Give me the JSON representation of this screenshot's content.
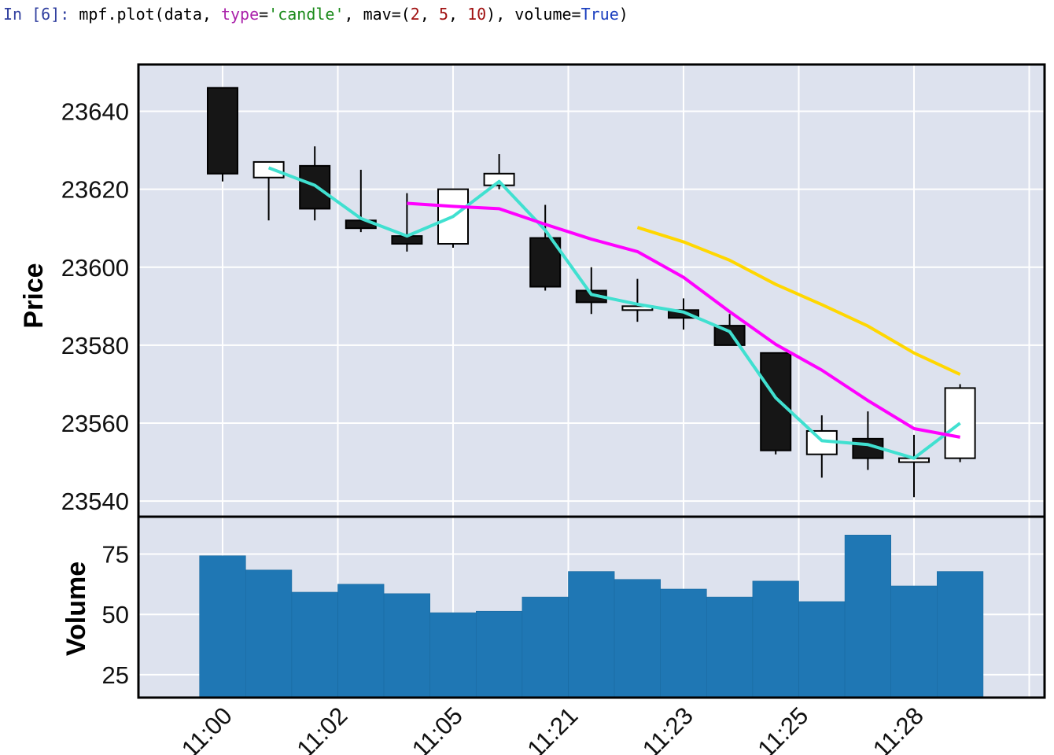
{
  "cell": {
    "prompt": "In [6]:",
    "code_parts": [
      {
        "t": " mpf.plot(data, ",
        "c": ""
      },
      {
        "t": "type",
        "c": "kw"
      },
      {
        "t": "=",
        "c": ""
      },
      {
        "t": "'candle'",
        "c": "str"
      },
      {
        "t": ", mav=(",
        "c": ""
      },
      {
        "t": "2",
        "c": "num"
      },
      {
        "t": ", ",
        "c": ""
      },
      {
        "t": "5",
        "c": "num"
      },
      {
        "t": ", ",
        "c": ""
      },
      {
        "t": "10",
        "c": "num"
      },
      {
        "t": "), volume=",
        "c": ""
      },
      {
        "t": "True",
        "c": "bool"
      },
      {
        "t": ")",
        "c": ""
      }
    ]
  },
  "chart_data": {
    "type": "candlestick",
    "ylabel": "Price",
    "volume_ylabel": "Volume",
    "ylim": [
      23536,
      23652
    ],
    "volume_ylim": [
      15.5,
      90.5
    ],
    "yticks": [
      23540,
      23560,
      23580,
      23600,
      23620,
      23640
    ],
    "volume_yticks": [
      25,
      50,
      75
    ],
    "xtick_labels": [
      "11:00",
      "11:02",
      "11:05",
      "11:21",
      "11:23",
      "11:25",
      "11:28"
    ],
    "xtick_positions": [
      0,
      2.5,
      5,
      7.5,
      10,
      12.5,
      15
    ],
    "grid": true,
    "mav": [
      2,
      5,
      10
    ],
    "mav_colors": [
      "#40e0d0",
      "#ff00ff",
      "#ffd700"
    ],
    "up_color": "#ffffff",
    "down_color": "#161616",
    "volume_color": "#1f77b4",
    "background": "#dde2ee",
    "candles": [
      {
        "o": 23646,
        "h": 23646,
        "l": 23622,
        "c": 23624
      },
      {
        "o": 23623,
        "h": 23627,
        "l": 23612,
        "c": 23627
      },
      {
        "o": 23626,
        "h": 23631,
        "l": 23612,
        "c": 23615
      },
      {
        "o": 23612,
        "h": 23625,
        "l": 23609,
        "c": 23610
      },
      {
        "o": 23608,
        "h": 23619,
        "l": 23604,
        "c": 23606
      },
      {
        "o": 23606,
        "h": 23620,
        "l": 23605,
        "c": 23620
      },
      {
        "o": 23621,
        "h": 23629,
        "l": 23620,
        "c": 23624
      },
      {
        "o": 23607.5,
        "h": 23616,
        "l": 23594,
        "c": 23595
      },
      {
        "o": 23594,
        "h": 23600,
        "l": 23588,
        "c": 23591
      },
      {
        "o": 23589,
        "h": 23597,
        "l": 23586,
        "c": 23590
      },
      {
        "o": 23589,
        "h": 23592,
        "l": 23584,
        "c": 23587
      },
      {
        "o": 23585,
        "h": 23588,
        "l": 23580,
        "c": 23580
      },
      {
        "o": 23578,
        "h": 23578,
        "l": 23552,
        "c": 23553
      },
      {
        "o": 23552,
        "h": 23562,
        "l": 23546,
        "c": 23558
      },
      {
        "o": 23556,
        "h": 23563,
        "l": 23548,
        "c": 23551
      },
      {
        "o": 23550,
        "h": 23557,
        "l": 23541,
        "c": 23551
      },
      {
        "o": 23551,
        "h": 23570,
        "l": 23550,
        "c": 23569
      }
    ],
    "volume": [
      74.3,
      68.4,
      59.2,
      62.5,
      58.6,
      50.7,
      51.3,
      57.2,
      67.8,
      64.5,
      60.5,
      57.2,
      63.8,
      55.3,
      82.9,
      61.8,
      67.8
    ]
  }
}
